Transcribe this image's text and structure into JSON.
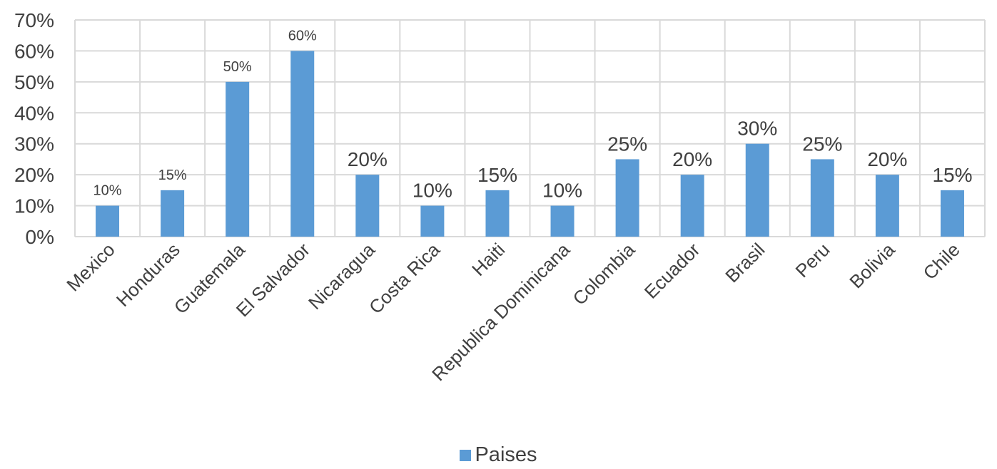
{
  "chart_data": {
    "type": "bar",
    "categories": [
      "Mexico",
      "Honduras",
      "Guatemala",
      "El Salvador",
      "Nicaragua",
      "Costa Rica",
      "Haiti",
      "Republica Dominicana",
      "Colombia",
      "Ecuador",
      "Brasil",
      "Peru",
      "Bolivia",
      "Chile"
    ],
    "series": [
      {
        "name": "Paises",
        "values": [
          0.1,
          0.15,
          0.5,
          0.6,
          0.2,
          0.1,
          0.15,
          0.1,
          0.25,
          0.2,
          0.3,
          0.25,
          0.2,
          0.15
        ]
      }
    ],
    "data_labels": [
      "10%",
      "15%",
      "50%",
      "60%",
      "20%",
      "10%",
      "15%",
      "10%",
      "25%",
      "20%",
      "30%",
      "25%",
      "20%",
      "15%"
    ],
    "y_ticks": [
      "0%",
      "10%",
      "20%",
      "30%",
      "40%",
      "50%",
      "60%",
      "70%"
    ],
    "ylim": [
      0,
      0.7
    ],
    "grid": true,
    "legend_position": "bottom",
    "colors": {
      "bar": "#5B9BD5",
      "grid": "#D9D9D9",
      "text": "#404040"
    }
  }
}
